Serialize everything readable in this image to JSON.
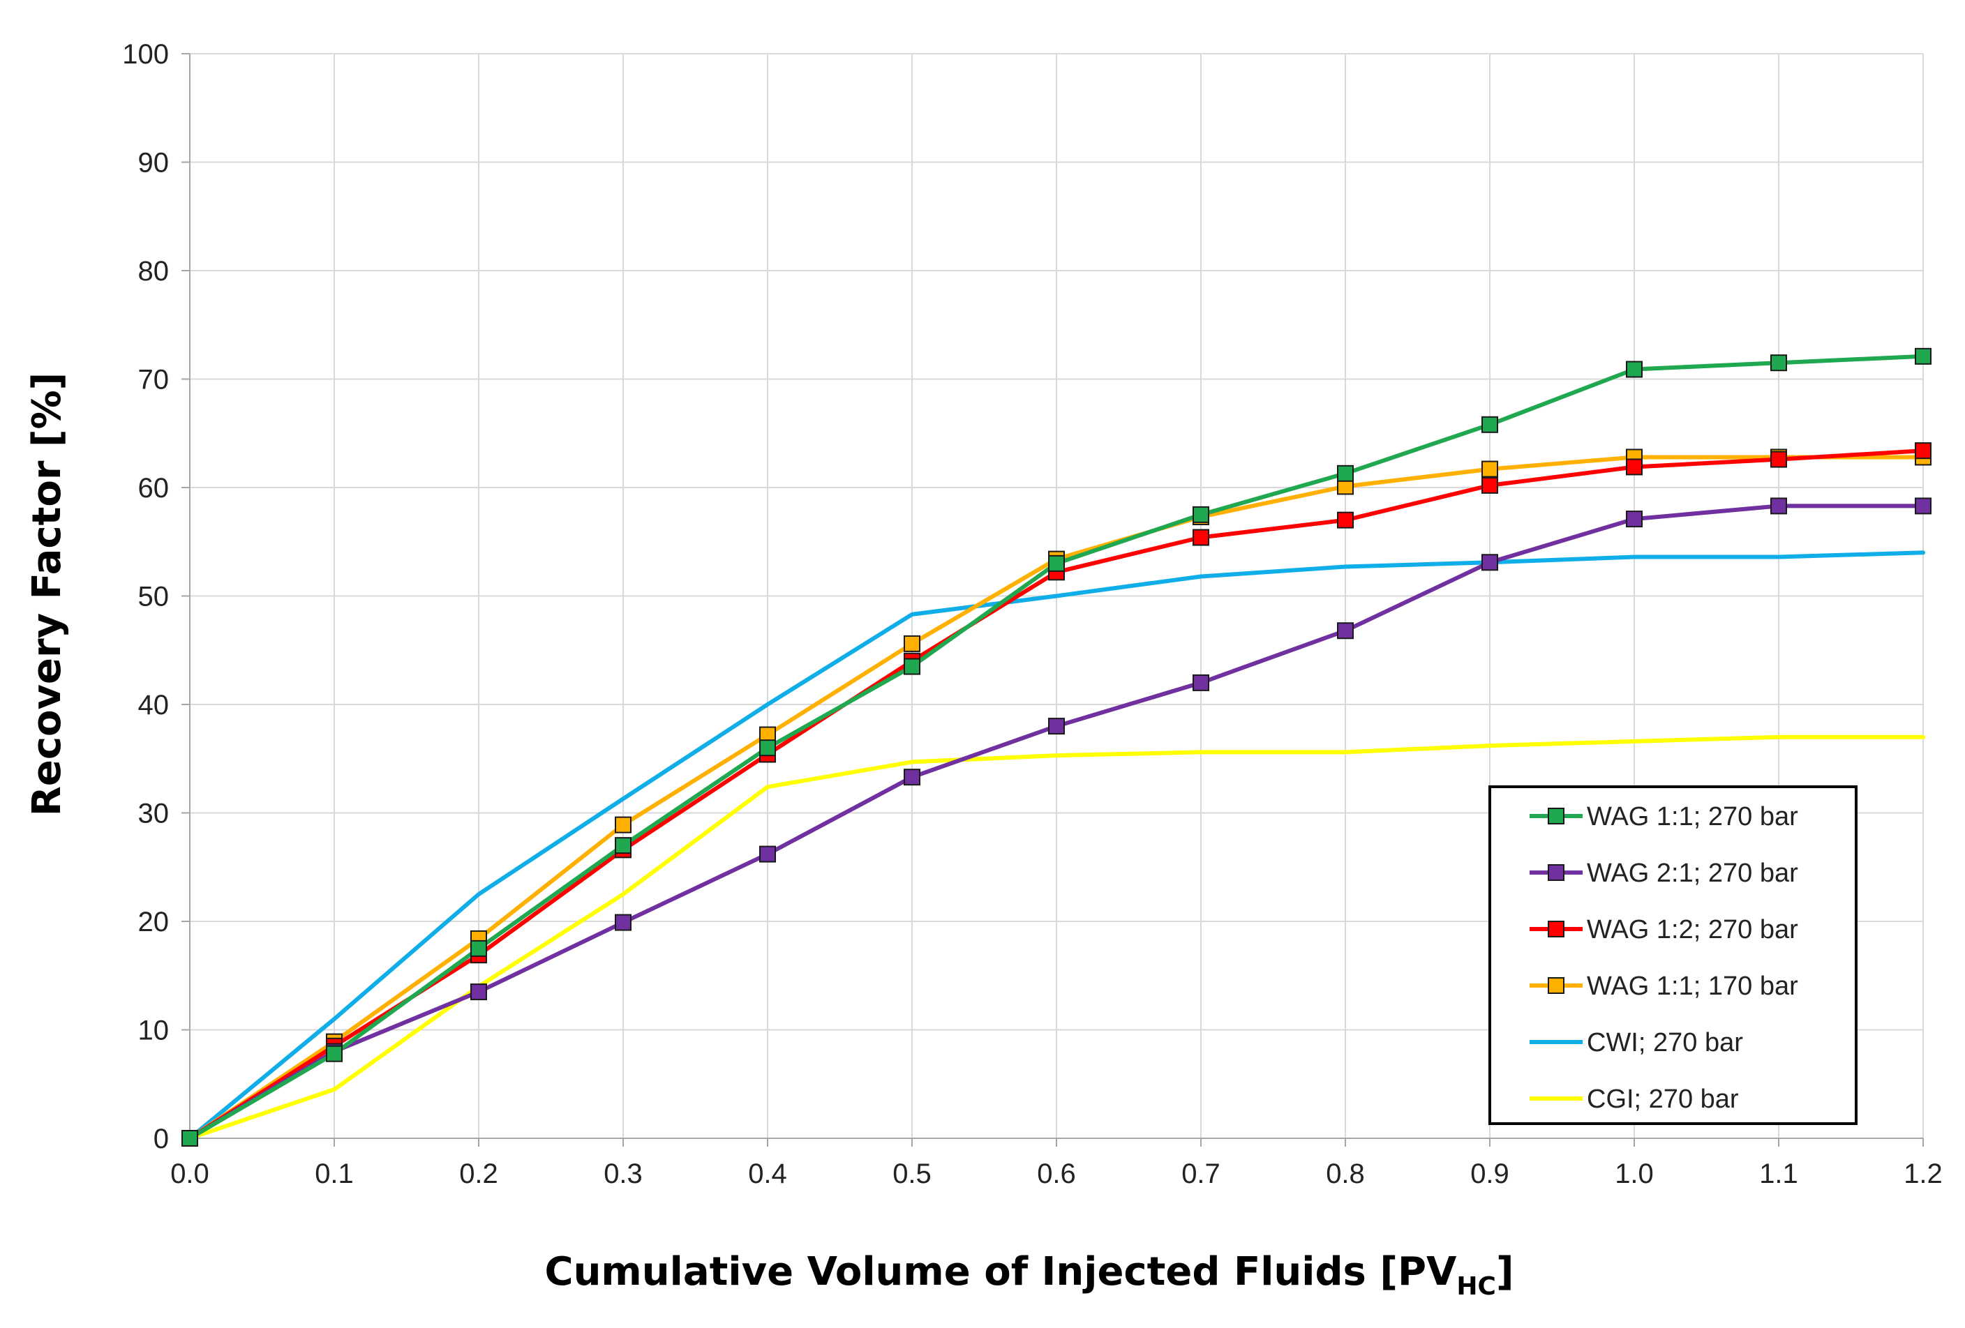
{
  "chart_data": {
    "type": "line",
    "xlabel": "Cumulative Volume of Injected Fluids [PV",
    "xlabel_subscript": "HC",
    "xlabel_suffix": "]",
    "ylabel": "Recovery Factor [%]",
    "xlim": [
      0.0,
      1.2
    ],
    "ylim": [
      0,
      100
    ],
    "x_ticks": [
      "0.0",
      "0.1",
      "0.2",
      "0.3",
      "0.4",
      "0.5",
      "0.6",
      "0.7",
      "0.8",
      "0.9",
      "1.0",
      "1.1",
      "1.2"
    ],
    "y_ticks": [
      "0",
      "10",
      "20",
      "30",
      "40",
      "50",
      "60",
      "70",
      "80",
      "90",
      "100"
    ],
    "grid": true,
    "legend_position": "bottom-right",
    "series": [
      {
        "name": "WAG 1:1; 270 bar",
        "color": "#1fa84f",
        "marker": "square",
        "x": [
          0.0,
          0.1,
          0.2,
          0.3,
          0.4,
          0.5,
          0.6,
          0.7,
          0.8,
          0.9,
          1.0,
          1.1,
          1.2
        ],
        "y": [
          0,
          7.8,
          17.5,
          27.0,
          36.0,
          43.5,
          53.0,
          57.5,
          61.3,
          65.8,
          70.9,
          71.5,
          72.1
        ]
      },
      {
        "name": "WAG 2:1; 270 bar",
        "color": "#7030a0",
        "marker": "square",
        "x": [
          0.0,
          0.1,
          0.2,
          0.3,
          0.4,
          0.5,
          0.6,
          0.7,
          0.8,
          0.9,
          1.0,
          1.1,
          1.2
        ],
        "y": [
          0,
          8.0,
          13.5,
          19.9,
          26.2,
          33.3,
          38.0,
          42.0,
          46.8,
          53.1,
          57.1,
          58.3,
          58.3
        ]
      },
      {
        "name": "WAG 1:2; 270 bar",
        "color": "#ff0000",
        "marker": "square",
        "x": [
          0.0,
          0.1,
          0.2,
          0.3,
          0.4,
          0.5,
          0.6,
          0.7,
          0.8,
          0.9,
          1.0,
          1.1,
          1.2
        ],
        "y": [
          0,
          8.5,
          16.9,
          26.6,
          35.4,
          44.0,
          52.2,
          55.4,
          57.0,
          60.2,
          61.9,
          62.6,
          63.4
        ]
      },
      {
        "name": "WAG 1:1; 170 bar",
        "color": "#ffb000",
        "marker": "square",
        "x": [
          0.0,
          0.1,
          0.2,
          0.3,
          0.4,
          0.5,
          0.6,
          0.7,
          0.8,
          0.9,
          1.0,
          1.1,
          1.2
        ],
        "y": [
          0,
          8.9,
          18.4,
          28.9,
          37.2,
          45.6,
          53.4,
          57.3,
          60.1,
          61.7,
          62.8,
          62.8,
          62.8
        ]
      },
      {
        "name": "CWI; 270 bar",
        "color": "#10aee8",
        "marker": "none",
        "x": [
          0.0,
          0.1,
          0.2,
          0.3,
          0.4,
          0.5,
          0.6,
          0.7,
          0.8,
          0.9,
          1.0,
          1.1,
          1.2
        ],
        "y": [
          0,
          11.0,
          22.5,
          31.3,
          40.0,
          48.3,
          50.0,
          51.8,
          52.7,
          53.1,
          53.6,
          53.6,
          54.0
        ]
      },
      {
        "name": "CGI; 270 bar",
        "color": "#ffff00",
        "marker": "none",
        "x": [
          0.0,
          0.1,
          0.2,
          0.3,
          0.4,
          0.5,
          0.6,
          0.7,
          0.8,
          0.9,
          1.0,
          1.1,
          1.2
        ],
        "y": [
          0,
          4.5,
          14.0,
          22.5,
          32.4,
          34.7,
          35.3,
          35.6,
          35.6,
          36.2,
          36.6,
          37.0,
          37.0
        ]
      }
    ]
  }
}
